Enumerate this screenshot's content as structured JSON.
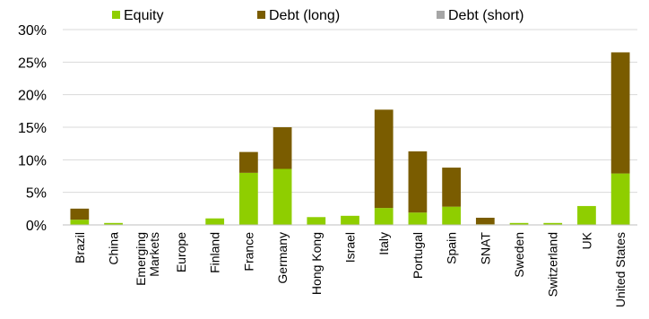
{
  "chart_data": {
    "type": "bar",
    "stacked": true,
    "categories": [
      "Brazil",
      "China",
      "Emerging\nMarkets",
      "Europe",
      "Finland",
      "France",
      "Germany",
      "Hong Kong",
      "Israel",
      "Italy",
      "Portugal",
      "Spain",
      "SNAT",
      "Sweden",
      "Switzerland",
      "UK",
      "United States"
    ],
    "series": [
      {
        "name": "Equity",
        "color": "#8fce00",
        "values": [
          0.8,
          0.3,
          0,
          0,
          1.0,
          8.0,
          8.6,
          1.2,
          1.4,
          2.6,
          1.9,
          2.8,
          0.1,
          0.3,
          0.3,
          2.9,
          7.9
        ]
      },
      {
        "name": "Debt (long)",
        "color": "#7a5c00",
        "values": [
          1.7,
          0.0,
          0,
          0,
          0.0,
          3.2,
          6.4,
          0.0,
          0.0,
          15.1,
          9.4,
          6.0,
          1.0,
          0.0,
          0.0,
          0.0,
          18.6
        ]
      },
      {
        "name": "Debt (short)",
        "color": "#a6a6a6",
        "values": [
          0,
          0,
          0,
          0,
          0,
          0,
          0,
          0,
          0,
          0,
          0,
          0,
          0,
          0,
          0,
          0,
          0
        ]
      }
    ],
    "ylim": [
      0,
      30
    ],
    "yticks": [
      0,
      5,
      10,
      15,
      20,
      25,
      30
    ],
    "ytick_labels": [
      "0%",
      "5%",
      "10%",
      "15%",
      "20%",
      "25%",
      "30%"
    ],
    "grid": true,
    "legend_placement": "top"
  }
}
